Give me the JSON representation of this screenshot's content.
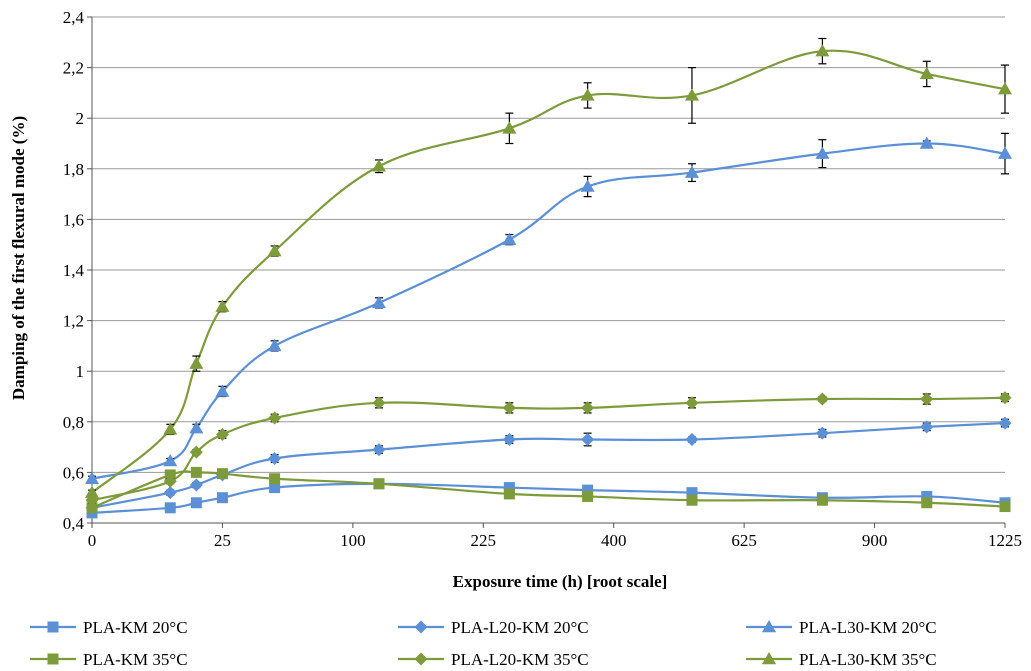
{
  "chart_data": {
    "type": "line",
    "xlabel": "Exposure time (h) [root scale]",
    "ylabel": "Damping of the first flexural mode (%)",
    "x_scale": "sqrt",
    "xlim": [
      0,
      1225
    ],
    "ylim": [
      0.4,
      2.4
    ],
    "x_ticks": [
      0,
      25,
      100,
      225,
      400,
      625,
      900,
      1225
    ],
    "x_tick_labels": [
      "0",
      "25",
      "100",
      "225",
      "400",
      "625",
      "900",
      "1225"
    ],
    "y_ticks": [
      0.4,
      0.6,
      0.8,
      1.0,
      1.2,
      1.4,
      1.6,
      1.8,
      2.0,
      2.2,
      2.4
    ],
    "y_tick_labels": [
      "0,4",
      "0,6",
      "0,8",
      "1",
      "1,2",
      "1,4",
      "1,6",
      "1,8",
      "2",
      "2,2",
      "2,4"
    ],
    "grid": "horizontal",
    "legend_position": "bottom",
    "x": [
      0,
      9,
      16,
      25,
      49,
      121,
      256,
      361,
      529,
      784,
      1024,
      1225
    ],
    "series": [
      {
        "name": "PLA-KM 20°C",
        "color": "#5B8FD6",
        "marker": "square",
        "values": [
          0.44,
          0.46,
          0.48,
          0.5,
          0.54,
          0.555,
          0.54,
          0.53,
          0.52,
          0.5,
          0.505,
          0.48
        ],
        "errors": [
          0.01,
          0.01,
          0.01,
          0.01,
          0.01,
          0.01,
          0.01,
          0.01,
          0.01,
          0.01,
          0.01,
          0.01
        ]
      },
      {
        "name": "PLA-L20-KM 20°C",
        "color": "#5B8FD6",
        "marker": "diamond",
        "values": [
          0.46,
          0.52,
          0.55,
          0.59,
          0.655,
          0.69,
          0.73,
          0.73,
          0.73,
          0.755,
          0.78,
          0.795
        ],
        "errors": [
          0.01,
          0.01,
          0.01,
          0.01,
          0.015,
          0.015,
          0.015,
          0.025,
          0.01,
          0.015,
          0.015,
          0.015
        ]
      },
      {
        "name": "PLA-L30-KM 20°C",
        "color": "#5B8FD6",
        "marker": "triangle",
        "values": [
          0.575,
          0.645,
          0.775,
          0.92,
          1.1,
          1.27,
          1.52,
          1.73,
          1.785,
          1.86,
          1.9,
          1.86
        ],
        "errors": [
          0.01,
          0.01,
          0.015,
          0.02,
          0.02,
          0.02,
          0.02,
          0.04,
          0.035,
          0.055,
          0.01,
          0.08
        ]
      },
      {
        "name": "PLA-KM 35°C",
        "color": "#7E9B3C",
        "marker": "square",
        "values": [
          0.46,
          0.59,
          0.6,
          0.595,
          0.575,
          0.555,
          0.515,
          0.505,
          0.49,
          0.49,
          0.48,
          0.465
        ],
        "errors": [
          0.01,
          0.01,
          0.01,
          0.01,
          0.01,
          0.01,
          0.015,
          0.01,
          0.01,
          0.01,
          0.01,
          0.01
        ]
      },
      {
        "name": "PLA-L20-KM 35°C",
        "color": "#7E9B3C",
        "marker": "diamond",
        "values": [
          0.49,
          0.565,
          0.68,
          0.75,
          0.815,
          0.875,
          0.855,
          0.855,
          0.875,
          0.89,
          0.89,
          0.895
        ],
        "errors": [
          0.01,
          0.01,
          0.01,
          0.015,
          0.015,
          0.02,
          0.02,
          0.02,
          0.02,
          0.01,
          0.02,
          0.015
        ]
      },
      {
        "name": "PLA-L30-KM 35°C",
        "color": "#7E9B3C",
        "marker": "triangle",
        "values": [
          0.52,
          0.77,
          1.03,
          1.255,
          1.475,
          1.81,
          1.96,
          2.09,
          2.09,
          2.265,
          2.175,
          2.115
        ],
        "errors": [
          0.01,
          0.02,
          0.03,
          0.02,
          0.02,
          0.025,
          0.06,
          0.05,
          0.11,
          0.05,
          0.05,
          0.095
        ]
      }
    ]
  }
}
